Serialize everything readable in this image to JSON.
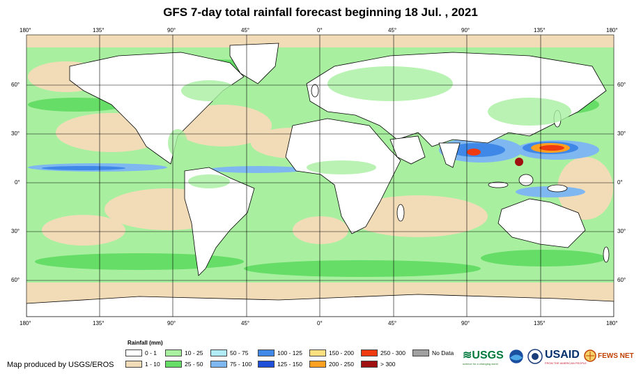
{
  "title": "GFS 7-day total rainfall forecast beginning 18 Jul. , 2021",
  "axes": {
    "top": [
      "180°",
      "135°",
      "90°",
      "45°",
      "0°",
      "45°",
      "90°",
      "135°",
      "180°"
    ],
    "bottom": [
      "180°",
      "135°",
      "90°",
      "45°",
      "0°",
      "45°",
      "90°",
      "135°",
      "180°"
    ],
    "left": [
      "60°",
      "30°",
      "0°",
      "30°",
      "60°"
    ],
    "right": [
      "60°",
      "30°",
      "0°",
      "30°",
      "60°"
    ]
  },
  "legend": {
    "title": "Rainfall (mm)",
    "items": [
      {
        "label": "0 - 1",
        "color": "#ffffff"
      },
      {
        "label": "1 - 10",
        "color": "#f2dcb8"
      },
      {
        "label": "10 - 25",
        "color": "#a8f0a0"
      },
      {
        "label": "25 - 50",
        "color": "#66dd66"
      },
      {
        "label": "50 - 75",
        "color": "#b0ecf8"
      },
      {
        "label": "75 - 100",
        "color": "#7fb8f0"
      },
      {
        "label": "100 - 125",
        "color": "#3f88e8"
      },
      {
        "label": "125 - 150",
        "color": "#1e4fd8"
      },
      {
        "label": "150 - 200",
        "color": "#ffe080"
      },
      {
        "label": "200 - 250",
        "color": "#ffa020"
      },
      {
        "label": "250 - 300",
        "color": "#f03a10"
      },
      {
        "label": "> 300",
        "color": "#a01010"
      },
      {
        "label": "No Data",
        "color": "#a0a0a0"
      }
    ]
  },
  "credit": "Map produced by USGS/EROS",
  "logos": {
    "usgs": "≋USGS",
    "usgs_tagline": "science for a changing world",
    "usaid": "USAID",
    "usaid_tagline": "FROM THE AMERICAN PEOPLE",
    "fews": "FEWS NET"
  }
}
